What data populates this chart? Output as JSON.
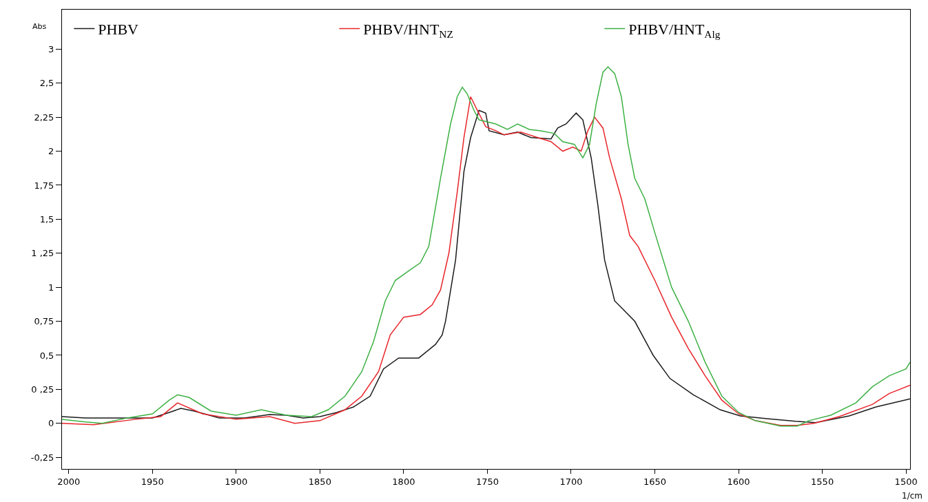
{
  "chart_data": {
    "type": "line",
    "xlabel": "1/cm",
    "ylabel": "Abs",
    "xlim": [
      2004,
      1497.6
    ],
    "xticks": [
      2000,
      1950,
      1900,
      1850,
      1800,
      1750,
      1700,
      1650,
      1600,
      1550,
      1500
    ],
    "ylim": [
      -0.335,
      3.04
    ],
    "yticks": [
      {
        "value": 2.75,
        "label": "3"
      },
      {
        "value": 2.5,
        "label": "2,5"
      },
      {
        "value": 2.25,
        "label": "2,25"
      },
      {
        "value": 2,
        "label": "2"
      },
      {
        "value": 1.75,
        "label": "1,75"
      },
      {
        "value": 1.5,
        "label": "1,5"
      },
      {
        "value": 1.25,
        "label": "1 ,25"
      },
      {
        "value": 1,
        "label": "1"
      },
      {
        "value": 0.75,
        "label": "0,75"
      },
      {
        "value": 0.5,
        "label": "0,5"
      },
      {
        "value": 0.25,
        "label": "0 ,25"
      },
      0,
      {
        "value": -0.25,
        "label": "-0,25"
      }
    ],
    "legend": "top left",
    "series": [
      {
        "name": "PHBV",
        "color": "#1a1a1a",
        "x": [
          2004,
          1990,
          1975,
          1950,
          1940,
          1933,
          1925,
          1910,
          1895,
          1880,
          1870,
          1860,
          1850,
          1840,
          1830,
          1820,
          1812,
          1803,
          1791,
          1781,
          1777,
          1775,
          1769,
          1764,
          1760,
          1755,
          1751,
          1749,
          1740,
          1732,
          1724,
          1712,
          1708,
          1703,
          1697,
          1693,
          1688,
          1684,
          1680,
          1674,
          1670,
          1662,
          1651,
          1641,
          1627,
          1611,
          1599,
          1583,
          1566,
          1554,
          1534,
          1518,
          1497.6
        ],
        "values": [
          0.05,
          0.04,
          0.04,
          0.04,
          0.08,
          0.11,
          0.09,
          0.04,
          0.04,
          0.065,
          0.06,
          0.04,
          0.05,
          0.08,
          0.12,
          0.2,
          0.4,
          0.48,
          0.48,
          0.58,
          0.65,
          0.75,
          1.2,
          1.85,
          2.1,
          2.3,
          2.28,
          2.15,
          2.12,
          2.14,
          2.1,
          2.09,
          2.17,
          2.2,
          2.28,
          2.23,
          1.95,
          1.6,
          1.2,
          0.9,
          0.85,
          0.75,
          0.5,
          0.33,
          0.21,
          0.1,
          0.055,
          0.035,
          0.015,
          0.005,
          0.055,
          0.12,
          0.18
        ]
      },
      {
        "name": "PHBV/HNT$_{NZ}$",
        "color": "#e8252a",
        "x": [
          2004,
          1985,
          1960,
          1945,
          1935,
          1920,
          1900,
          1880,
          1865,
          1850,
          1835,
          1825,
          1815,
          1808,
          1800,
          1790,
          1783,
          1778,
          1773,
          1768,
          1764,
          1760,
          1756,
          1751,
          1745,
          1740,
          1730,
          1720,
          1712,
          1705,
          1699,
          1694,
          1690,
          1686,
          1681,
          1677,
          1670,
          1665,
          1660,
          1650,
          1640,
          1630,
          1620,
          1610,
          1600,
          1590,
          1575,
          1565,
          1555,
          1540,
          1520,
          1510,
          1497.6
        ],
        "values": [
          0.0,
          -0.01,
          0.03,
          0.05,
          0.15,
          0.07,
          0.03,
          0.05,
          0.0,
          0.02,
          0.1,
          0.2,
          0.38,
          0.65,
          0.78,
          0.8,
          0.87,
          0.98,
          1.25,
          1.7,
          2.1,
          2.4,
          2.3,
          2.18,
          2.15,
          2.12,
          2.14,
          2.1,
          2.07,
          2.0,
          2.03,
          2.0,
          2.15,
          2.25,
          2.17,
          1.95,
          1.65,
          1.38,
          1.3,
          1.05,
          0.78,
          0.55,
          0.35,
          0.17,
          0.07,
          0.02,
          -0.015,
          -0.015,
          0.0,
          0.05,
          0.14,
          0.22,
          0.28
        ]
      },
      {
        "name": "PHBV/HNT$_{Alg}$",
        "color": "#3cb043",
        "x": [
          2004,
          1990,
          1980,
          1965,
          1950,
          1940,
          1935,
          1928,
          1915,
          1900,
          1885,
          1870,
          1855,
          1845,
          1835,
          1825,
          1818,
          1811,
          1805,
          1797,
          1790,
          1785,
          1778,
          1772,
          1768,
          1765,
          1762,
          1758,
          1755,
          1745,
          1738,
          1732,
          1725,
          1718,
          1710,
          1705,
          1698,
          1693,
          1689,
          1685,
          1681,
          1678,
          1674,
          1670,
          1666,
          1662,
          1656,
          1650,
          1640,
          1630,
          1620,
          1610,
          1600,
          1590,
          1575,
          1565,
          1558,
          1545,
          1530,
          1520,
          1510,
          1500,
          1497.6
        ],
        "values": [
          0.03,
          0.01,
          0.0,
          0.04,
          0.07,
          0.17,
          0.21,
          0.19,
          0.09,
          0.06,
          0.1,
          0.06,
          0.05,
          0.1,
          0.2,
          0.38,
          0.6,
          0.9,
          1.05,
          1.12,
          1.18,
          1.3,
          1.8,
          2.2,
          2.4,
          2.47,
          2.42,
          2.3,
          2.23,
          2.2,
          2.16,
          2.2,
          2.16,
          2.15,
          2.13,
          2.07,
          2.05,
          1.95,
          2.05,
          2.35,
          2.58,
          2.62,
          2.57,
          2.4,
          2.05,
          1.8,
          1.65,
          1.4,
          1.0,
          0.75,
          0.45,
          0.2,
          0.08,
          0.02,
          -0.02,
          -0.02,
          0.02,
          0.06,
          0.15,
          0.27,
          0.35,
          0.4,
          0.45
        ]
      }
    ]
  }
}
